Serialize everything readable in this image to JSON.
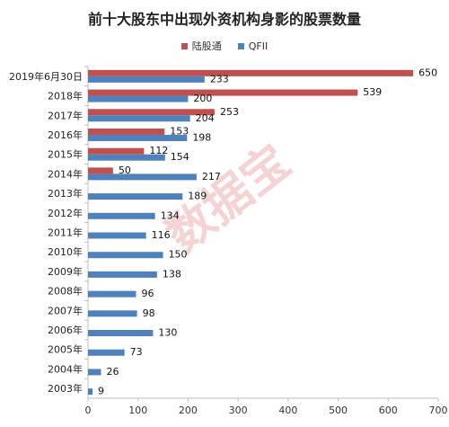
{
  "chart_data": {
    "type": "bar",
    "orientation": "horizontal",
    "title": "前十大股东中出现外资机构身影的股票数量",
    "categories": [
      "2019年6月30日",
      "2018年",
      "2017年",
      "2016年",
      "2015年",
      "2014年",
      "2013年",
      "2012年",
      "2011年",
      "2010年",
      "2009年",
      "2008年",
      "2007年",
      "2006年",
      "2005年",
      "2004年",
      "2003年"
    ],
    "series": [
      {
        "name": "陆股通",
        "color": "#c0504d",
        "values": [
          650,
          539,
          253,
          153,
          112,
          50,
          null,
          null,
          null,
          null,
          null,
          null,
          null,
          null,
          null,
          null,
          null
        ]
      },
      {
        "name": "QFII",
        "color": "#4f81bd",
        "values": [
          233,
          200,
          204,
          198,
          154,
          217,
          189,
          134,
          116,
          150,
          138,
          96,
          98,
          130,
          73,
          26,
          9
        ]
      }
    ],
    "xlim": [
      0,
      700
    ],
    "xticks": [
      0,
      100,
      200,
      300,
      400,
      500,
      600,
      700
    ],
    "legend_position": "top-center",
    "grid": false,
    "watermark": "数据宝"
  }
}
